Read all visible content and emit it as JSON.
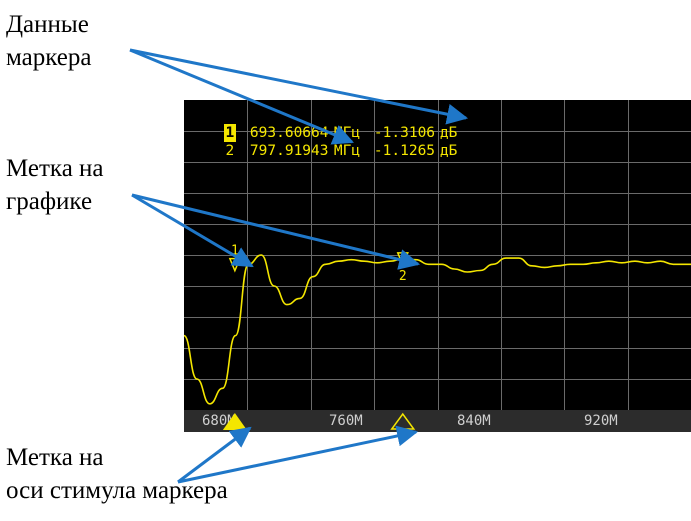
{
  "callouts": {
    "marker_data": [
      "Данные",
      "маркера"
    ],
    "graph_mark": [
      "Метка  на",
      "графике"
    ],
    "axis_mark": [
      "Метка на",
      "оси стимула маркера"
    ]
  },
  "markers": [
    {
      "index": "1",
      "freq": "693.60664",
      "freq_unit": "МГц",
      "value": "-1.3106",
      "value_unit": "дБ",
      "active": true
    },
    {
      "index": "2",
      "freq": "797.91943",
      "freq_unit": "МГц",
      "value": "-1.1265",
      "value_unit": "дБ",
      "active": false
    }
  ],
  "axis_ticks": [
    "680M",
    "760M",
    "840M",
    "920M"
  ],
  "graph_marker_labels": [
    "1",
    "2"
  ],
  "colors": {
    "trace": "#f4e600",
    "arrow": "#1f77c8",
    "grid": "#6a6a6a",
    "screen_bg": "#000000",
    "axis_bg": "#2c2c2c"
  },
  "chart_data": {
    "type": "line",
    "xlabel": "",
    "ylabel": "",
    "xlim": [
      662,
      977
    ],
    "ylim": [
      -6,
      4
    ],
    "x": [
      662,
      670,
      678,
      686,
      694,
      702,
      710,
      718,
      726,
      734,
      742,
      750,
      758,
      766,
      774,
      782,
      790,
      798,
      806,
      814,
      822,
      830,
      838,
      846,
      854,
      862,
      870,
      878,
      886,
      894,
      902,
      910,
      918,
      926,
      934,
      942,
      950,
      958,
      966,
      977
    ],
    "y": [
      -3.6,
      -5.0,
      -5.8,
      -5.3,
      -3.6,
      -1.3,
      -1.0,
      -2.0,
      -2.6,
      -2.4,
      -1.7,
      -1.3,
      -1.2,
      -1.15,
      -1.2,
      -1.25,
      -1.2,
      -1.13,
      -1.15,
      -1.3,
      -1.3,
      -1.45,
      -1.55,
      -1.5,
      -1.3,
      -1.1,
      -1.1,
      -1.35,
      -1.4,
      -1.35,
      -1.3,
      -1.3,
      -1.25,
      -1.2,
      -1.25,
      -1.2,
      -1.25,
      -1.2,
      -1.3,
      -1.3
    ],
    "markers": [
      {
        "label": "1",
        "x": 693.60664,
        "y": -1.3106
      },
      {
        "label": "2",
        "x": 797.91943,
        "y": -1.1265
      }
    ],
    "axis_ticks": [
      680,
      760,
      840,
      920
    ],
    "grid": true
  }
}
